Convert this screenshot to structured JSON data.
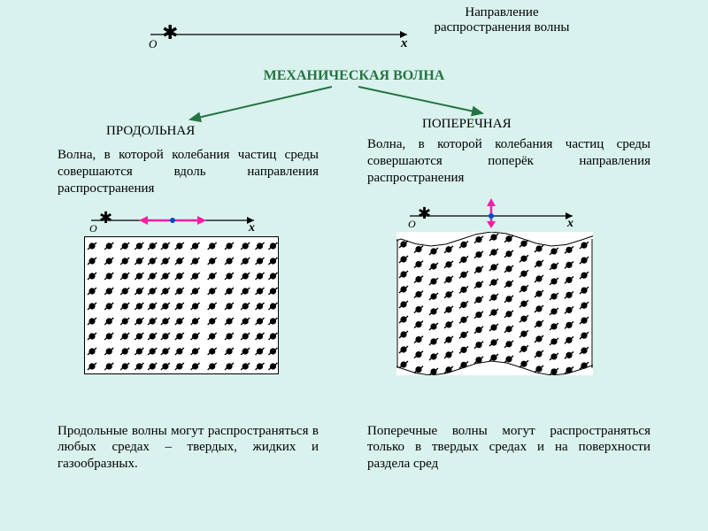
{
  "page": {
    "bg_color": "#d9f2ee",
    "text_color": "#000000",
    "accent_green": "#267342",
    "accent_pink": "#ff1aa5",
    "accent_blue": "#0044cc",
    "fontsize_body": 15,
    "fontsize_title": 16,
    "fontsize_sub": 15
  },
  "top_axis": {
    "O": "О",
    "x": "х",
    "asterisk": "✱"
  },
  "direction_label": "Направление распространения волны",
  "main_title": "МЕХАНИЧЕСКАЯ ВОЛНА",
  "left": {
    "subhead": "ПРОДОЛЬНАЯ",
    "definition": "Волна, в которой колебания частиц среды совершаются вдоль направления распространения",
    "axis": {
      "O": "О",
      "x": "х",
      "asterisk": "✱"
    },
    "bottom": "Продольные волны могут распространяться в любых средах – твердых, жидких и газообразных."
  },
  "right": {
    "subhead": "ПОПЕРЕЧНАЯ",
    "definition": "Волна, в которой колебания частиц среды совершаются поперёк направления распространения",
    "axis": {
      "O": "О",
      "x": "х",
      "asterisk": "✱"
    },
    "bottom": "Поперечные волны могут распространяться только в твердых средах и на поверхности раздела сред"
  },
  "grid_pattern": {
    "cols": 13,
    "rows": 9,
    "cell": 17,
    "left_waves": [
      {
        "phase": 0
      },
      {
        "phase": 0
      }
    ],
    "right_amp": 8,
    "right_cycles": 1.6
  }
}
